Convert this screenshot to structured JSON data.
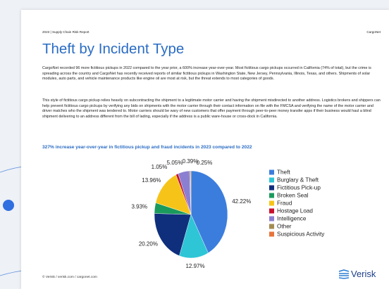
{
  "header": {
    "left": "2023 | Supply Chain Risk Report",
    "right": "CargoNet"
  },
  "title": "Theft by Incident Type",
  "paragraphs": [
    "CargoNet recorded 96 more fictitious pickups in 2022 compared to the year prior, a 600% increase year-over-year. Most fictitious cargo pickups occurred in California (74% of total), but the crime is spreading across the country and CargoNet has recently received reports of similar fictitious pickups in Washington State, New Jersey, Pennsylvania, Illinois, Texas, and others. Shipments of solar modules, auto parts, and vehicle maintenance products like engine oil are most at risk, but the threat extends to most categories of goods.",
    "This style of fictitious cargo pickup relies heavily on subcontracting the shipment to a legitimate motor carrier and having the shipment misdirected to another address. Logistics brokers and shippers can help prevent fictitious cargo pickups by verifying any bids on shipments with the motor carrier through their contact information on file with the FMCSA and verifying the name of the motor carrier and driver matches who the shipment was tendered to. Motor carriers should be wary of new customers that offer payment through peer-to-peer money transfer apps if their business would haul a blind shipment delivering to an address different from the bill of lading, especially if the address is a public ware-house or cross-dock in California."
  ],
  "chart_data": {
    "type": "pie",
    "title": "327% increase year-over-year in fictitious pickup and fraud incidents in 2023 compared to 2022",
    "categories": [
      "Theft",
      "Burglary & Theft",
      "Fictitious Pick-up",
      "Broken Seal",
      "Fraud",
      "Hostage Load",
      "Intelligence",
      "Other",
      "Suspicious Activity"
    ],
    "values": [
      42.22,
      12.97,
      20.2,
      3.93,
      13.96,
      1.05,
      5.05,
      0.39,
      0.25
    ],
    "value_labels": [
      "42.22%",
      "12.97%",
      "20.20%",
      "3.93%",
      "13.96%",
      "1.05%",
      "5.05%",
      "0.39%",
      "0.25%"
    ],
    "colors": [
      "#3b7ddd",
      "#2ec5d6",
      "#0f2f7d",
      "#1a9a5c",
      "#f6c419",
      "#c8102e",
      "#8b7fd2",
      "#a38b52",
      "#e8743b"
    ],
    "legend": "right"
  },
  "footer": {
    "left": "© Verisk / verisk.com / cargonet.com",
    "logo": "Verisk"
  }
}
